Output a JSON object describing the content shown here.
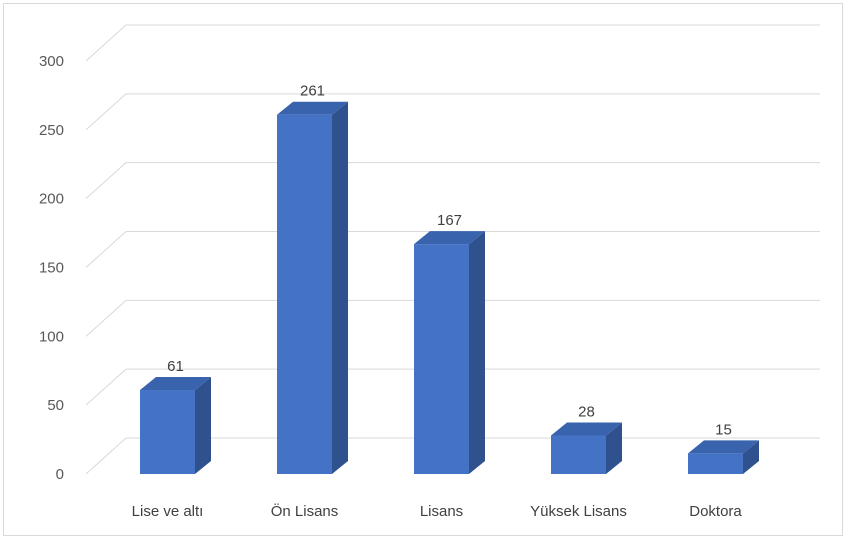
{
  "chart_data": {
    "type": "bar",
    "style": "3d-column",
    "categories": [
      "Lise ve altı",
      "Ön Lisans",
      "Lisans",
      "Yüksek Lisans",
      "Doktora"
    ],
    "values": [
      61,
      261,
      167,
      28,
      15
    ],
    "data_labels": [
      "61",
      "261",
      "167",
      "28",
      "15"
    ],
    "yticks": [
      "0",
      "50",
      "100",
      "150",
      "200",
      "250",
      "300"
    ],
    "ylim": [
      0,
      300
    ],
    "title": "",
    "xlabel": "",
    "ylabel": "",
    "grid": true,
    "legend": "none",
    "colors": {
      "bar_front": "#4472c4",
      "bar_side": "#2f528f",
      "bar_top": "#3a63ad",
      "grid": "#d9d9d9"
    }
  }
}
